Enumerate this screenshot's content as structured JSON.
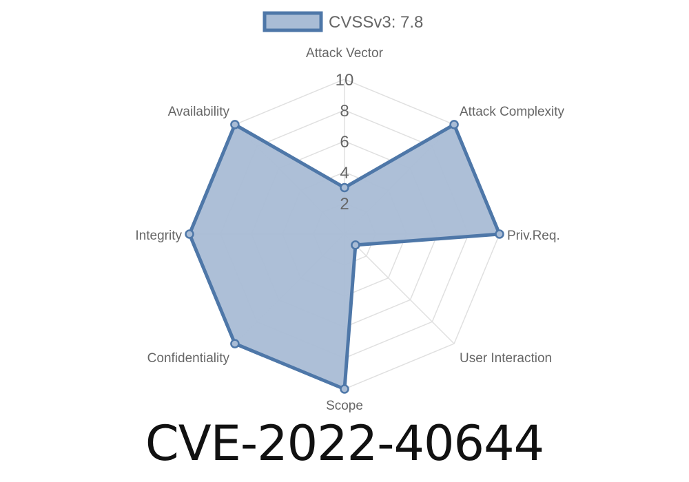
{
  "chart_data": {
    "type": "radar",
    "legend": {
      "label": "CVSSv3: 7.8",
      "placement": "top"
    },
    "axes": [
      "Attack Vector",
      "Attack Complexity",
      "Priv.Req.",
      "User Interaction",
      "Scope",
      "Confidentiality",
      "Integrity",
      "Availability"
    ],
    "series": [
      {
        "name": "CVSSv3: 7.8",
        "values": [
          3.0,
          10,
          10,
          1.0,
          10,
          10,
          10,
          10
        ]
      }
    ],
    "rlim": [
      0,
      10
    ],
    "ticks": [
      "2",
      "4",
      "6",
      "8",
      "10"
    ],
    "grid": true,
    "colors": {
      "line": "#4e77a8",
      "fill": "#a9bcd5",
      "grid": "#e0e0e0",
      "text": "#666666"
    }
  },
  "title": "CVE-2022-40644"
}
